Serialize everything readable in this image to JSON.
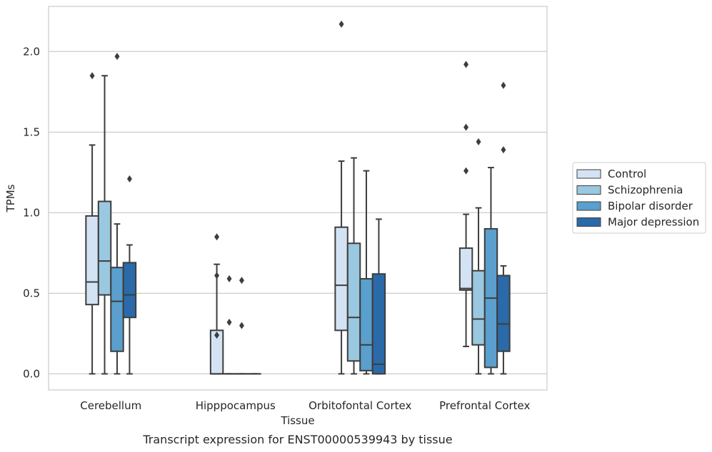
{
  "caption": "Transcript expression for ENST00000539943 by tissue",
  "chart_data": {
    "type": "box",
    "xlabel": "Tissue",
    "ylabel": "TPMs",
    "ylim": [
      -0.1,
      2.28
    ],
    "yticks": [
      0.0,
      0.5,
      1.0,
      1.5,
      2.0
    ],
    "ytick_labels": [
      "0.0",
      "0.5",
      "1.0",
      "1.5",
      "2.0"
    ],
    "grid": "horizontal",
    "legend_position": "right-outside",
    "categories": [
      "Cerebellum",
      "Hipppocampus",
      "Orbitofontal Cortex",
      "Prefrontal Cortex"
    ],
    "series": [
      {
        "name": "Control",
        "color": "#d3e3f3",
        "boxes": [
          {
            "whislo": 0.0,
            "q1": 0.43,
            "med": 0.57,
            "q3": 0.98,
            "whishi": 1.42,
            "fliers": [
              1.85
            ]
          },
          {
            "whislo": 0.0,
            "q1": 0.0,
            "med": 0.0,
            "q3": 0.27,
            "whishi": 0.68,
            "fliers": [
              0.85,
              0.61,
              0.24
            ]
          },
          {
            "whislo": 0.0,
            "q1": 0.27,
            "med": 0.55,
            "q3": 0.91,
            "whishi": 1.32,
            "fliers": [
              2.17
            ]
          },
          {
            "whislo": 0.17,
            "q1": 0.52,
            "med": 0.53,
            "q3": 0.78,
            "whishi": 0.99,
            "fliers": [
              1.92,
              1.53,
              1.26
            ]
          }
        ]
      },
      {
        "name": "Schizophrenia",
        "color": "#9ac8e0",
        "boxes": [
          {
            "whislo": 0.0,
            "q1": 0.49,
            "med": 0.7,
            "q3": 1.07,
            "whishi": 1.85,
            "fliers": []
          },
          {
            "whislo": 0.0,
            "q1": 0.0,
            "med": 0.0,
            "q3": 0.0,
            "whishi": 0.0,
            "fliers": [
              0.59,
              0.32
            ]
          },
          {
            "whislo": 0.0,
            "q1": 0.08,
            "med": 0.35,
            "q3": 0.81,
            "whishi": 1.34,
            "fliers": []
          },
          {
            "whislo": 0.0,
            "q1": 0.18,
            "med": 0.34,
            "q3": 0.64,
            "whishi": 1.03,
            "fliers": [
              1.44
            ]
          }
        ]
      },
      {
        "name": "Bipolar disorder",
        "color": "#5a9fcd",
        "boxes": [
          {
            "whislo": 0.0,
            "q1": 0.14,
            "med": 0.45,
            "q3": 0.66,
            "whishi": 0.93,
            "fliers": [
              1.97
            ]
          },
          {
            "whislo": 0.0,
            "q1": 0.0,
            "med": 0.0,
            "q3": 0.0,
            "whishi": 0.0,
            "fliers": [
              0.58,
              0.3
            ]
          },
          {
            "whislo": 0.0,
            "q1": 0.02,
            "med": 0.18,
            "q3": 0.59,
            "whishi": 1.26,
            "fliers": []
          },
          {
            "whislo": 0.0,
            "q1": 0.04,
            "med": 0.47,
            "q3": 0.9,
            "whishi": 1.28,
            "fliers": []
          }
        ]
      },
      {
        "name": "Major depression",
        "color": "#2b6aa8",
        "boxes": [
          {
            "whislo": 0.0,
            "q1": 0.35,
            "med": 0.49,
            "q3": 0.69,
            "whishi": 0.8,
            "fliers": [
              1.21
            ]
          },
          {
            "whislo": 0.0,
            "q1": 0.0,
            "med": 0.0,
            "q3": 0.0,
            "whishi": 0.0,
            "fliers": []
          },
          {
            "whislo": 0.0,
            "q1": 0.0,
            "med": 0.06,
            "q3": 0.62,
            "whishi": 0.96,
            "fliers": []
          },
          {
            "whislo": 0.0,
            "q1": 0.14,
            "med": 0.31,
            "q3": 0.61,
            "whishi": 0.67,
            "fliers": [
              1.79,
              1.39
            ]
          }
        ]
      }
    ]
  }
}
